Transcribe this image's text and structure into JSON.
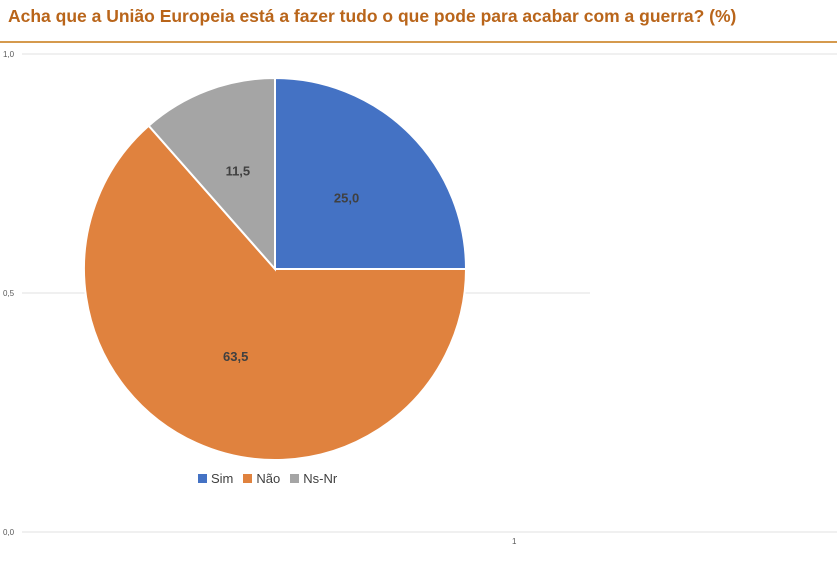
{
  "title": "Acha que a União Europeia está a fazer tudo o que pode para acabar com a guerra? (%)",
  "axis": {
    "y_ticks": [
      "1,0",
      "0,5",
      "0,0"
    ],
    "x_ticks": [
      "1"
    ]
  },
  "chart_data": {
    "type": "pie",
    "title": "Acha que a União Europeia está a fazer tudo o que pode para acabar com a guerra? (%)",
    "categories": [
      "Sim",
      "Não",
      "Ns-Nr"
    ],
    "values": [
      25.0,
      63.5,
      11.5
    ],
    "value_labels": [
      "25,0",
      "63,5",
      "11,5"
    ],
    "colors": [
      "#4472c4",
      "#e0823e",
      "#a5a5a5"
    ],
    "start_angle": "12 o'clock, clockwise",
    "legend_position": "bottom",
    "ylim": [
      0,
      1
    ],
    "grid": true
  }
}
